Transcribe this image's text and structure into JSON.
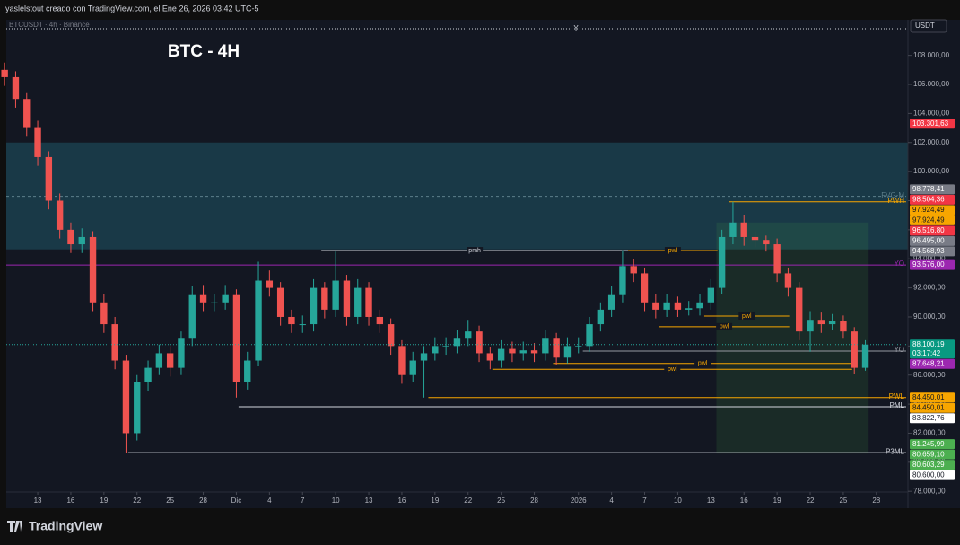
{
  "chart_data": {
    "type": "candlestick",
    "header": "yaslelstout creado con TradingView.com, el Ene 26, 2026 03:42 UTC-5",
    "symbol": "BTCUSDT · 4h · Binance",
    "title": "BTC - 4H",
    "currency": "USDT",
    "top_marker": "Y",
    "brand": "TradingView",
    "up_color": "#26a69a",
    "down_color": "#ef5350",
    "x": [
      -3,
      -2,
      -1,
      0,
      1,
      2,
      3,
      4,
      5,
      6,
      7,
      8,
      9,
      10,
      11,
      12,
      13,
      14,
      15,
      16,
      17,
      18,
      19,
      20,
      21,
      22,
      23,
      24,
      25,
      26,
      27,
      28,
      29,
      30,
      31,
      32,
      33,
      34,
      35,
      36,
      37,
      38,
      39,
      40,
      41,
      42,
      43,
      44,
      45,
      46,
      47,
      48,
      49,
      50,
      51,
      52,
      53,
      54,
      55,
      56,
      57,
      58,
      59,
      60,
      61,
      62,
      63,
      64,
      65,
      66,
      67,
      68,
      69,
      70,
      71,
      72,
      73,
      74,
      75
    ],
    "open": [
      107000,
      106500,
      105000,
      103000,
      101000,
      98000,
      96000,
      95000,
      95500,
      91000,
      89500,
      87000,
      82000,
      85500,
      86500,
      87500,
      86500,
      88500,
      91500,
      91000,
      91000,
      91500,
      85500,
      87000,
      92500,
      92000,
      90000,
      89500,
      89500,
      92000,
      90500,
      92500,
      90000,
      92000,
      90000,
      89500,
      88000,
      86000,
      87000,
      87500,
      88000,
      88000,
      88500,
      89000,
      87500,
      87000,
      87800,
      87500,
      87700,
      87500,
      88500,
      87200,
      88000,
      88000,
      89500,
      90500,
      91500,
      93500,
      93000,
      91000,
      90500,
      91000,
      90500,
      90600,
      91000,
      92000,
      95500,
      96500,
      95500,
      95300,
      95000,
      93000,
      92000,
      89000,
      89800,
      89500,
      89700,
      89000,
      86500
    ],
    "high": [
      107500,
      106900,
      105400,
      103500,
      101400,
      98500,
      96500,
      96100,
      95900,
      91600,
      90000,
      87400,
      86000,
      87000,
      88100,
      88000,
      89000,
      92100,
      92200,
      91600,
      92200,
      91900,
      87600,
      93800,
      93200,
      92400,
      90500,
      90100,
      92600,
      92400,
      94500,
      92900,
      92600,
      92400,
      90500,
      89900,
      88400,
      87600,
      88000,
      88600,
      88600,
      89100,
      89800,
      89400,
      87900,
      88400,
      88300,
      88300,
      88200,
      89100,
      88900,
      88600,
      88600,
      90000,
      91000,
      92100,
      94600,
      94000,
      93400,
      91600,
      91600,
      91400,
      91100,
      91600,
      92600,
      96000,
      97924,
      97000,
      95900,
      95600,
      95400,
      93400,
      92400,
      90400,
      90300,
      90200,
      90100,
      89300,
      88400
    ],
    "low": [
      105900,
      104400,
      102400,
      100400,
      97400,
      95400,
      94400,
      94400,
      90400,
      88900,
      86400,
      80659,
      81500,
      84900,
      86000,
      85900,
      86000,
      88000,
      90400,
      90400,
      90500,
      84450,
      85000,
      86600,
      91400,
      89400,
      88900,
      88900,
      89000,
      89900,
      90000,
      89400,
      89500,
      89400,
      88900,
      87400,
      85400,
      85500,
      84450,
      87000,
      87400,
      87500,
      88000,
      86900,
      86400,
      86500,
      86900,
      87000,
      86900,
      87000,
      86700,
      86800,
      87500,
      87600,
      89000,
      90000,
      91000,
      92400,
      90400,
      89900,
      90000,
      90000,
      90100,
      90100,
      90500,
      91600,
      95000,
      94900,
      94800,
      94500,
      92400,
      91400,
      88400,
      87600,
      88900,
      89100,
      88500,
      86100,
      86300
    ],
    "close": [
      106500,
      105000,
      103000,
      101000,
      98000,
      96000,
      95000,
      95500,
      91000,
      89500,
      87000,
      82000,
      85500,
      86500,
      87500,
      86500,
      88500,
      91500,
      91000,
      91000,
      91500,
      85500,
      87000,
      92500,
      92000,
      90000,
      89500,
      89500,
      92000,
      90500,
      92500,
      90000,
      92000,
      90000,
      89500,
      88000,
      86000,
      87000,
      87500,
      88000,
      88000,
      88500,
      89000,
      87500,
      87000,
      87800,
      87500,
      87700,
      87500,
      88500,
      87200,
      88000,
      88000,
      89500,
      90500,
      91500,
      93500,
      93000,
      91000,
      90500,
      91000,
      90500,
      90600,
      91000,
      92000,
      95500,
      96500,
      95500,
      95300,
      95000,
      93000,
      92000,
      89000,
      89800,
      89500,
      89700,
      89000,
      86500,
      88100
    ],
    "xlim": [
      -2.85,
      78.86
    ],
    "xticks": [
      {
        "value": 0,
        "label": "13"
      },
      {
        "value": 3,
        "label": "16"
      },
      {
        "value": 6,
        "label": "19"
      },
      {
        "value": 9,
        "label": "22"
      },
      {
        "value": 12,
        "label": "25"
      },
      {
        "value": 15,
        "label": "28"
      },
      {
        "value": 18,
        "label": "Dic"
      },
      {
        "value": 21,
        "label": "4"
      },
      {
        "value": 24,
        "label": "7"
      },
      {
        "value": 27,
        "label": "10"
      },
      {
        "value": 30,
        "label": "13"
      },
      {
        "value": 33,
        "label": "16"
      },
      {
        "value": 36,
        "label": "19"
      },
      {
        "value": 39,
        "label": "22"
      },
      {
        "value": 42,
        "label": "25"
      },
      {
        "value": 45,
        "label": "28"
      },
      {
        "value": 49,
        "label": "2026"
      },
      {
        "value": 52,
        "label": "4"
      },
      {
        "value": 55,
        "label": "7"
      },
      {
        "value": 58,
        "label": "10"
      },
      {
        "value": 61,
        "label": "13"
      },
      {
        "value": 64,
        "label": "16"
      },
      {
        "value": 67,
        "label": "19"
      },
      {
        "value": 70,
        "label": "22"
      },
      {
        "value": 73,
        "label": "25"
      },
      {
        "value": 76,
        "label": "28"
      }
    ],
    "ylim": [
      77950,
      110450
    ],
    "yticks": [
      {
        "value": 78000,
        "label": "78.000,00"
      },
      {
        "value": 80000,
        "label": "80.000,00"
      },
      {
        "value": 82000,
        "label": "82.000,00"
      },
      {
        "value": 84000,
        "label": "84.000,00"
      },
      {
        "value": 86000,
        "label": "86.000,00"
      },
      {
        "value": 88000,
        "label": "88.000,00"
      },
      {
        "value": 90000,
        "label": "90.000,00"
      },
      {
        "value": 92000,
        "label": "92.000,00"
      },
      {
        "value": 94000,
        "label": "94.000,00"
      },
      {
        "value": 96000,
        "label": "96.000,00"
      },
      {
        "value": 98000,
        "label": "98.000,00"
      },
      {
        "value": 100000,
        "label": "100.000,00"
      },
      {
        "value": 102000,
        "label": "102.000,00"
      },
      {
        "value": 104000,
        "label": "104.000,00"
      },
      {
        "value": 106000,
        "label": "106.000,00"
      },
      {
        "value": 108000,
        "label": "108.000,00"
      }
    ],
    "zones": [
      {
        "from": 102000,
        "to": 94650,
        "color": "rgba(38,120,140,0.35)"
      },
      {
        "from": 96500,
        "to": 80600,
        "x0": 61.5,
        "x1": 75.3,
        "color": "rgba(76,175,80,0.13)"
      }
    ],
    "levels": [
      {
        "name": "FVG-M",
        "value": 98300,
        "color": "#5d7f8a",
        "dash": true,
        "label_pos": "right"
      },
      {
        "name": "pmh",
        "value": 94568.93,
        "x0": 25.7,
        "x1": 53.5,
        "color": "#d1d4dc",
        "label_pos": "middle"
      },
      {
        "name": "pwl",
        "value": 94568.93,
        "x0": 53.5,
        "x1": 61.6,
        "color": "#f7a600",
        "label_pos": "middle"
      },
      {
        "name": "PWH",
        "value": 97924.49,
        "x0": 62.6,
        "color": "#f7a600",
        "label_pos": "right"
      },
      {
        "name": "YO",
        "value": 93576,
        "color": "#9c27b0",
        "label_pos": "right"
      },
      {
        "name": "pwl",
        "value": 90062,
        "x0": 60.4,
        "x1": 68.1,
        "color": "#f7a600",
        "label_pos": "middle"
      },
      {
        "name": "pwl",
        "value": 89330,
        "x0": 56.3,
        "x1": 68.1,
        "color": "#f7a600",
        "label_pos": "middle"
      },
      {
        "name": "YO",
        "value": 87648.21,
        "x0": 49.4,
        "color": "#9598a1",
        "label_pos": "right"
      },
      {
        "name": "pwl",
        "value": 86800,
        "x0": 46.7,
        "x1": 73.8,
        "color": "#f7a600",
        "label_pos": "middle"
      },
      {
        "name": "pwl",
        "value": 86400,
        "x0": 41.2,
        "x1": 73.8,
        "color": "#f7a600",
        "label_pos": "middle"
      },
      {
        "name": "PWL",
        "value": 84450.01,
        "x0": 35.4,
        "color": "#f7a600",
        "label_pos": "right"
      },
      {
        "name": "PML",
        "value": 83822.76,
        "x0": 18.2,
        "color": "#d1d4dc",
        "label_pos": "right"
      },
      {
        "name": "P3ML",
        "value": 80659.1,
        "x0": 8.2,
        "color": "#d1d4dc",
        "label_pos": "right"
      }
    ],
    "price_labels": [
      {
        "value": 103301.63,
        "label": "103.301,63",
        "color": "#f23645"
      },
      {
        "value": 98778.41,
        "label": "98.778,41",
        "color": "#787b86"
      },
      {
        "value": 98504.36,
        "label": "98.504,36",
        "color": "#f23645"
      },
      {
        "value": 97924.49,
        "label": "97.924,49",
        "color": "#f7a600"
      },
      {
        "value": 97924.49,
        "label": "97.924,49",
        "color": "#f7a600"
      },
      {
        "value": 96516.8,
        "label": "96.516,80",
        "color": "#f23645"
      },
      {
        "value": 96495,
        "label": "96.495,00",
        "color": "#787b86"
      },
      {
        "value": 94568.93,
        "label": "94.568,93",
        "color": "#787b86"
      },
      {
        "value": 93576,
        "label": "93.576,00",
        "color": "#9c27b0"
      },
      {
        "value": 88100.19,
        "label": "88.100,19",
        "color": "#089981",
        "countdown": "03:17:42"
      },
      {
        "value": 87648.21,
        "label": "87.648,21",
        "color": "#9c27b0"
      },
      {
        "value": 84450.01,
        "label": "84.450,01",
        "color": "#f7a600"
      },
      {
        "value": 84450.01,
        "label": "84.450,01",
        "color": "#f7a600"
      },
      {
        "value": 83822.76,
        "label": "83.822,76",
        "color": "#ffffff"
      },
      {
        "value": 81245.99,
        "label": "81.245,99",
        "color": "#4caf50"
      },
      {
        "value": 80659.1,
        "label": "80.659,10",
        "color": "#4caf50"
      },
      {
        "value": 80603.29,
        "label": "80.603,29",
        "color": "#4caf50"
      },
      {
        "value": 80600,
        "label": "80.600,00",
        "color": "#ffffff"
      }
    ]
  }
}
